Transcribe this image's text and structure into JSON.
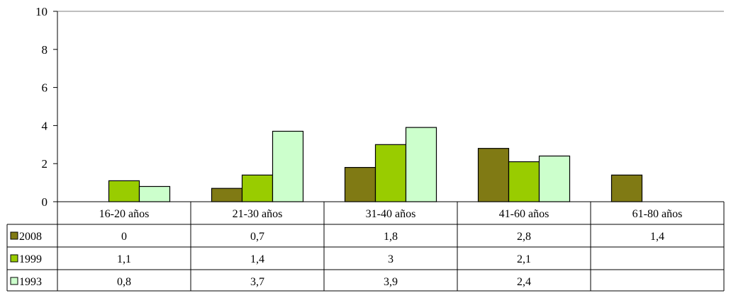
{
  "chart_data": {
    "type": "bar",
    "categories": [
      "16-20 años",
      "21-30 años",
      "31-40 años",
      "41-60 años",
      "61-80 años"
    ],
    "series": [
      {
        "name": "2008",
        "color": "#807a14",
        "values": [
          0,
          0.7,
          1.8,
          2.8,
          1.4
        ],
        "labels": [
          "0",
          "0,7",
          "1,8",
          "2,8",
          "1,4"
        ]
      },
      {
        "name": "1999",
        "color": "#99cc00",
        "values": [
          1.1,
          1.4,
          3,
          2.1,
          null
        ],
        "labels": [
          "1,1",
          "1,4",
          "3",
          "2,1",
          ""
        ]
      },
      {
        "name": "1993",
        "color": "#ccffcc",
        "values": [
          0.8,
          3.7,
          3.9,
          2.4,
          null
        ],
        "labels": [
          "0,8",
          "3,7",
          "3,9",
          "2,4",
          ""
        ]
      }
    ],
    "yticks": [
      "0",
      "2",
      "4",
      "6",
      "8",
      "10"
    ],
    "ylim": [
      0,
      10
    ],
    "grid": false,
    "legend": "data-table-left"
  }
}
